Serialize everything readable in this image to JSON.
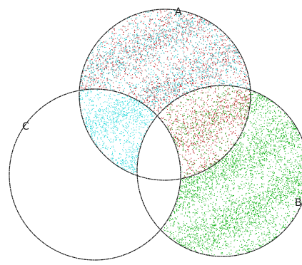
{
  "diagram": {
    "labels": {
      "a": "A",
      "b": "B",
      "c": "C"
    },
    "colors": {
      "background": "#ffffff",
      "outline": "#1a1a1a",
      "a_only_region": "#b8141a",
      "a_and_c_region": "#1ad6d9",
      "b_only_region": "#17b51c",
      "a_and_b_region": "#b8141a"
    }
  }
}
